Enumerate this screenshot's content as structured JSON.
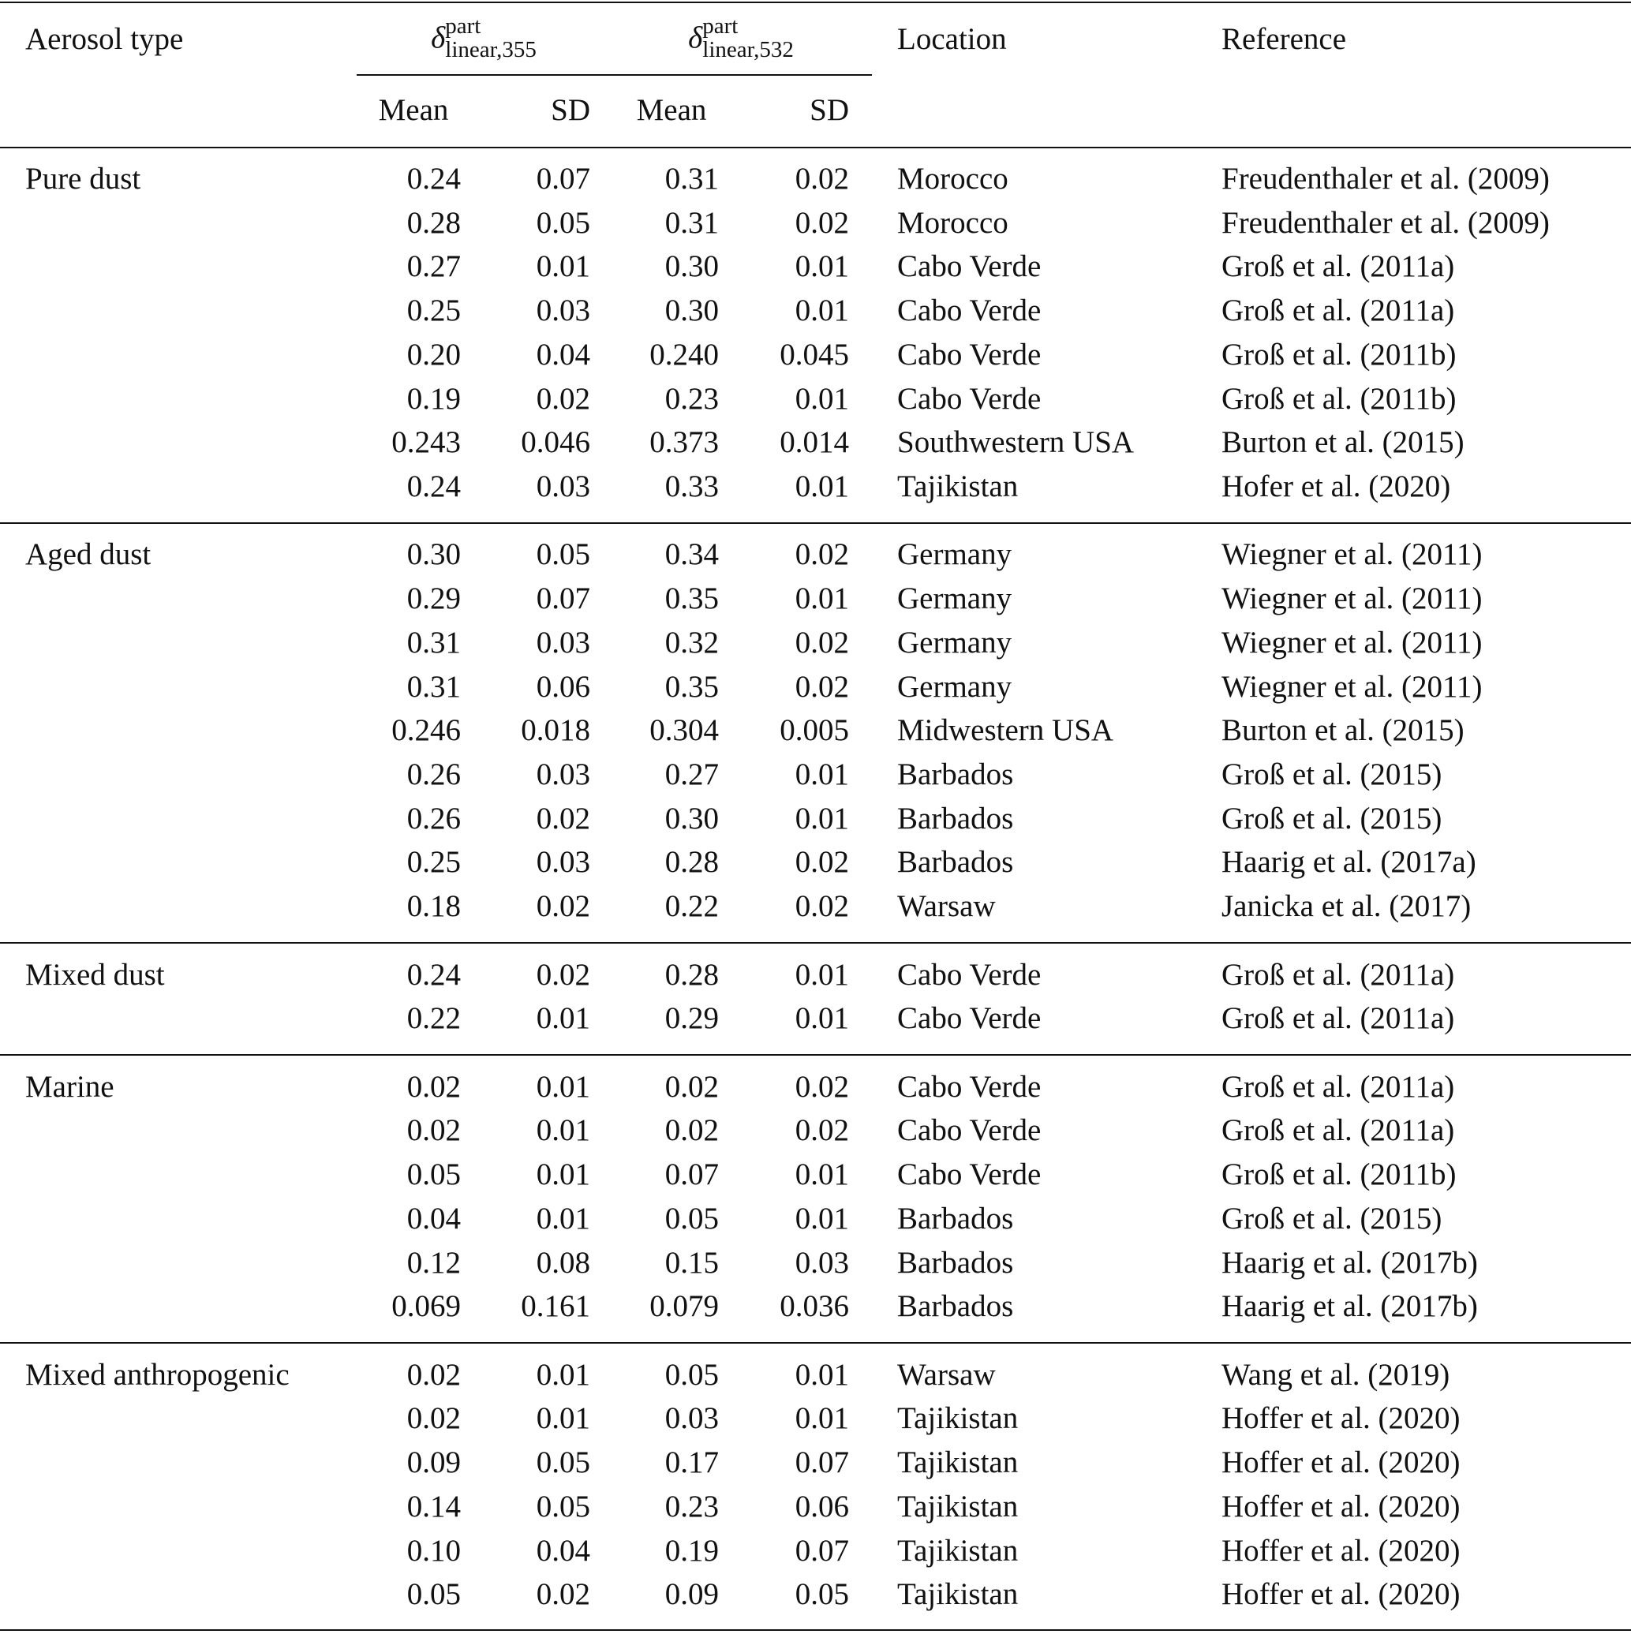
{
  "table": {
    "header": {
      "aerosol_type": "Aerosol type",
      "groups": [
        {
          "symbol": "δ",
          "sup": "part",
          "sub": "linear,355",
          "mean": "Mean",
          "sd": "SD"
        },
        {
          "symbol": "δ",
          "sup": "part",
          "sub": "linear,532",
          "mean": "Mean",
          "sd": "SD"
        }
      ],
      "location": "Location",
      "reference": "Reference"
    },
    "sections": [
      {
        "name": "Pure dust",
        "rows": [
          [
            "0.24",
            "0.07",
            "0.31",
            "0.02",
            "Morocco",
            "Freudenthaler et al. (2009)"
          ],
          [
            "0.28",
            "0.05",
            "0.31",
            "0.02",
            "Morocco",
            "Freudenthaler et al. (2009)"
          ],
          [
            "0.27",
            "0.01",
            "0.30",
            "0.01",
            "Cabo Verde",
            "Groß et al. (2011a)"
          ],
          [
            "0.25",
            "0.03",
            "0.30",
            "0.01",
            "Cabo Verde",
            "Groß et al. (2011a)"
          ],
          [
            "0.20",
            "0.04",
            "0.240",
            "0.045",
            "Cabo Verde",
            "Groß et al. (2011b)"
          ],
          [
            "0.19",
            "0.02",
            "0.23",
            "0.01",
            "Cabo Verde",
            "Groß et al. (2011b)"
          ],
          [
            "0.243",
            "0.046",
            "0.373",
            "0.014",
            "Southwestern USA",
            "Burton et al. (2015)"
          ],
          [
            "0.24",
            "0.03",
            "0.33",
            "0.01",
            "Tajikistan",
            "Hofer et al. (2020)"
          ]
        ]
      },
      {
        "name": "Aged dust",
        "rows": [
          [
            "0.30",
            "0.05",
            "0.34",
            "0.02",
            "Germany",
            "Wiegner et al. (2011)"
          ],
          [
            "0.29",
            "0.07",
            "0.35",
            "0.01",
            "Germany",
            "Wiegner et al. (2011)"
          ],
          [
            "0.31",
            "0.03",
            "0.32",
            "0.02",
            "Germany",
            "Wiegner et al. (2011)"
          ],
          [
            "0.31",
            "0.06",
            "0.35",
            "0.02",
            "Germany",
            "Wiegner et al. (2011)"
          ],
          [
            "0.246",
            "0.018",
            "0.304",
            "0.005",
            "Midwestern USA",
            "Burton et al. (2015)"
          ],
          [
            "0.26",
            "0.03",
            "0.27",
            "0.01",
            "Barbados",
            "Groß et al. (2015)"
          ],
          [
            "0.26",
            "0.02",
            "0.30",
            "0.01",
            "Barbados",
            "Groß et al. (2015)"
          ],
          [
            "0.25",
            "0.03",
            "0.28",
            "0.02",
            "Barbados",
            "Haarig et al. (2017a)"
          ],
          [
            "0.18",
            "0.02",
            "0.22",
            "0.02",
            "Warsaw",
            "Janicka et al. (2017)"
          ]
        ]
      },
      {
        "name": "Mixed dust",
        "rows": [
          [
            "0.24",
            "0.02",
            "0.28",
            "0.01",
            "Cabo Verde",
            "Groß et al. (2011a)"
          ],
          [
            "0.22",
            "0.01",
            "0.29",
            "0.01",
            "Cabo Verde",
            "Groß et al. (2011a)"
          ]
        ]
      },
      {
        "name": "Marine",
        "rows": [
          [
            "0.02",
            "0.01",
            "0.02",
            "0.02",
            "Cabo Verde",
            "Groß et al. (2011a)"
          ],
          [
            "0.02",
            "0.01",
            "0.02",
            "0.02",
            "Cabo Verde",
            "Groß et al. (2011a)"
          ],
          [
            "0.05",
            "0.01",
            "0.07",
            "0.01",
            "Cabo Verde",
            "Groß et al. (2011b)"
          ],
          [
            "0.04",
            "0.01",
            "0.05",
            "0.01",
            "Barbados",
            "Groß et al. (2015)"
          ],
          [
            "0.12",
            "0.08",
            "0.15",
            "0.03",
            "Barbados",
            "Haarig et al. (2017b)"
          ],
          [
            "0.069",
            "0.161",
            "0.079",
            "0.036",
            "Barbados",
            "Haarig et al. (2017b)"
          ]
        ]
      },
      {
        "name": "Mixed anthropogenic",
        "rows": [
          [
            "0.02",
            "0.01",
            "0.05",
            "0.01",
            "Warsaw",
            "Wang et al. (2019)"
          ],
          [
            "0.02",
            "0.01",
            "0.03",
            "0.01",
            "Tajikistan",
            "Hoffer et al. (2020)"
          ],
          [
            "0.09",
            "0.05",
            "0.17",
            "0.07",
            "Tajikistan",
            "Hoffer et al. (2020)"
          ],
          [
            "0.14",
            "0.05",
            "0.23",
            "0.06",
            "Tajikistan",
            "Hoffer et al. (2020)"
          ],
          [
            "0.10",
            "0.04",
            "0.19",
            "0.07",
            "Tajikistan",
            "Hoffer et al. (2020)"
          ],
          [
            "0.05",
            "0.02",
            "0.09",
            "0.05",
            "Tajikistan",
            "Hoffer et al. (2020)"
          ]
        ]
      }
    ]
  }
}
